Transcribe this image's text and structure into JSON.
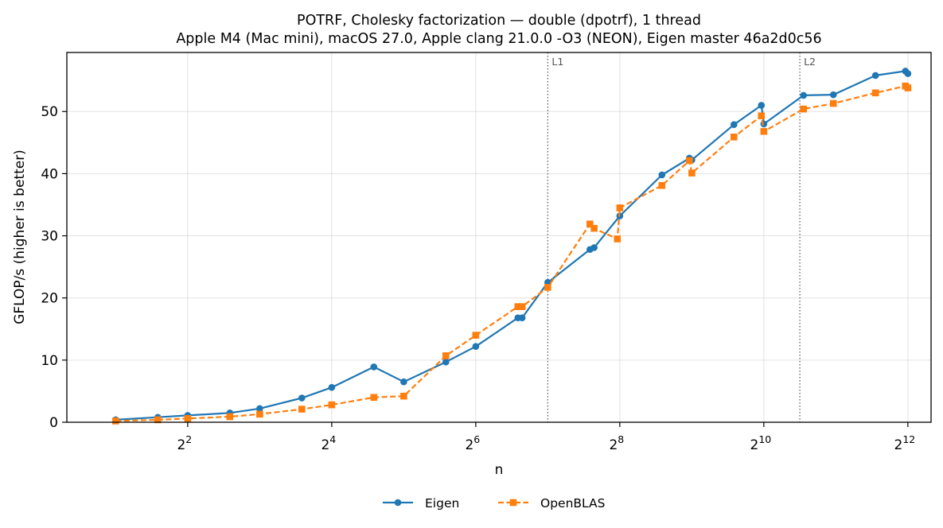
{
  "chart_data": {
    "type": "line",
    "title": "POTRF, Cholesky factorization — double (dpotrf), 1 thread",
    "subtitle": "Apple M4 (Mac mini), macOS 27.0, Apple clang 21.0.0 -O3 (NEON), Eigen master 46a2d0c56",
    "xlabel": "n",
    "ylabel": "GFLOP/s (higher is better)",
    "x_scale": "log2",
    "xlim": [
      1.25,
      5120
    ],
    "ylim": [
      0,
      59.5
    ],
    "x_ticks": [
      {
        "value": 4,
        "base": "2",
        "exp": "2"
      },
      {
        "value": 16,
        "base": "2",
        "exp": "4"
      },
      {
        "value": 64,
        "base": "2",
        "exp": "6"
      },
      {
        "value": 256,
        "base": "2",
        "exp": "8"
      },
      {
        "value": 1024,
        "base": "2",
        "exp": "10"
      },
      {
        "value": 4096,
        "base": "2",
        "exp": "12"
      }
    ],
    "y_ticks": [
      0,
      10,
      20,
      30,
      40,
      50
    ],
    "grid": true,
    "legend": "bottom-center",
    "cache_lines": [
      {
        "label": "L1",
        "x": 128
      },
      {
        "label": "L2",
        "x": 1448
      }
    ],
    "series": [
      {
        "name": "Eigen",
        "color": "#1f77b4",
        "marker": "circle",
        "linestyle": "solid",
        "x": [
          2,
          3,
          4,
          6,
          8,
          12,
          16,
          24,
          32,
          48,
          64,
          96,
          100,
          128,
          192,
          200,
          256,
          384,
          500,
          512,
          768,
          1000,
          1024,
          1500,
          2000,
          3000,
          4000,
          4096
        ],
        "y": [
          0.4,
          0.8,
          1.1,
          1.5,
          2.2,
          3.9,
          5.6,
          8.9,
          6.5,
          9.7,
          12.2,
          16.8,
          16.8,
          22.5,
          27.8,
          28.1,
          33.2,
          39.8,
          42.5,
          42.2,
          47.9,
          51.0,
          48.0,
          52.6,
          52.7,
          55.8,
          56.5,
          56.1
        ]
      },
      {
        "name": "OpenBLAS",
        "color": "#ff7f0e",
        "marker": "square",
        "linestyle": "dashed",
        "x": [
          2,
          3,
          4,
          6,
          8,
          12,
          16,
          24,
          32,
          48,
          64,
          96,
          100,
          128,
          192,
          200,
          250,
          256,
          384,
          500,
          512,
          768,
          1000,
          1024,
          1500,
          2000,
          3000,
          4000,
          4096
        ],
        "y": [
          0.2,
          0.4,
          0.6,
          0.9,
          1.3,
          2.1,
          2.8,
          4.0,
          4.2,
          10.7,
          14.0,
          18.6,
          18.6,
          21.7,
          31.9,
          31.2,
          29.5,
          34.5,
          38.1,
          42.1,
          40.1,
          45.9,
          49.3,
          46.8,
          50.4,
          51.3,
          53.0,
          54.1,
          53.8
        ]
      }
    ]
  }
}
